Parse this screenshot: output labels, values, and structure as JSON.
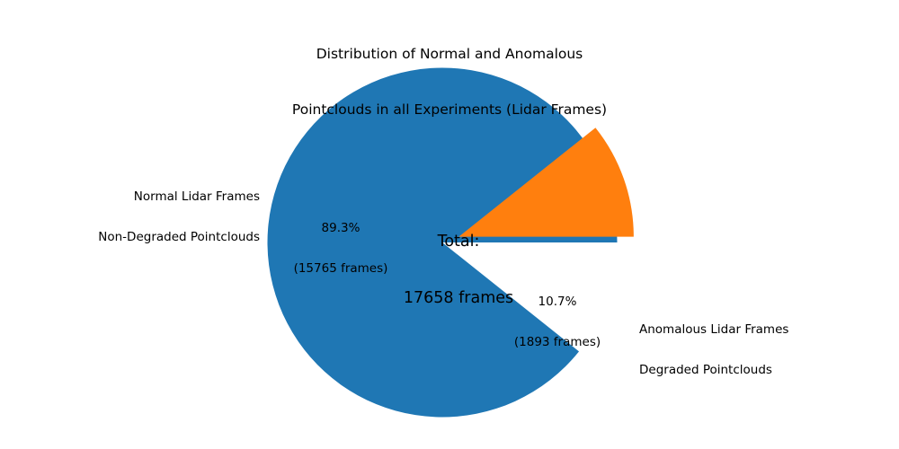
{
  "chart_data": {
    "type": "pie",
    "title": {
      "line1": "Distribution of Normal and Anomalous",
      "line2": "Pointclouds in all Experiments (Lidar Frames)"
    },
    "total_frames": 17658,
    "center_label": {
      "line1": "Total:",
      "line2": "17658 frames"
    },
    "start_angle": 0,
    "counterclock": true,
    "legend": "none",
    "background": "#ffffff",
    "slices": [
      {
        "name": "normal",
        "label_line1": "Normal Lidar Frames",
        "label_line2": "Non-Degraded Pointclouds",
        "value": 15765,
        "percent": 89.3,
        "pct_line1": "89.3%",
        "pct_line2": "(15765 frames)",
        "color": "#1f77b4",
        "explode": 0
      },
      {
        "name": "anomalous",
        "label_line1": "Anomalous Lidar Frames",
        "label_line2": "Degraded Pointclouds",
        "value": 1893,
        "percent": 10.7,
        "pct_line1": "10.7%",
        "pct_line2": "(1893 frames)",
        "color": "#ff7f0e",
        "explode": 0.1
      }
    ]
  }
}
